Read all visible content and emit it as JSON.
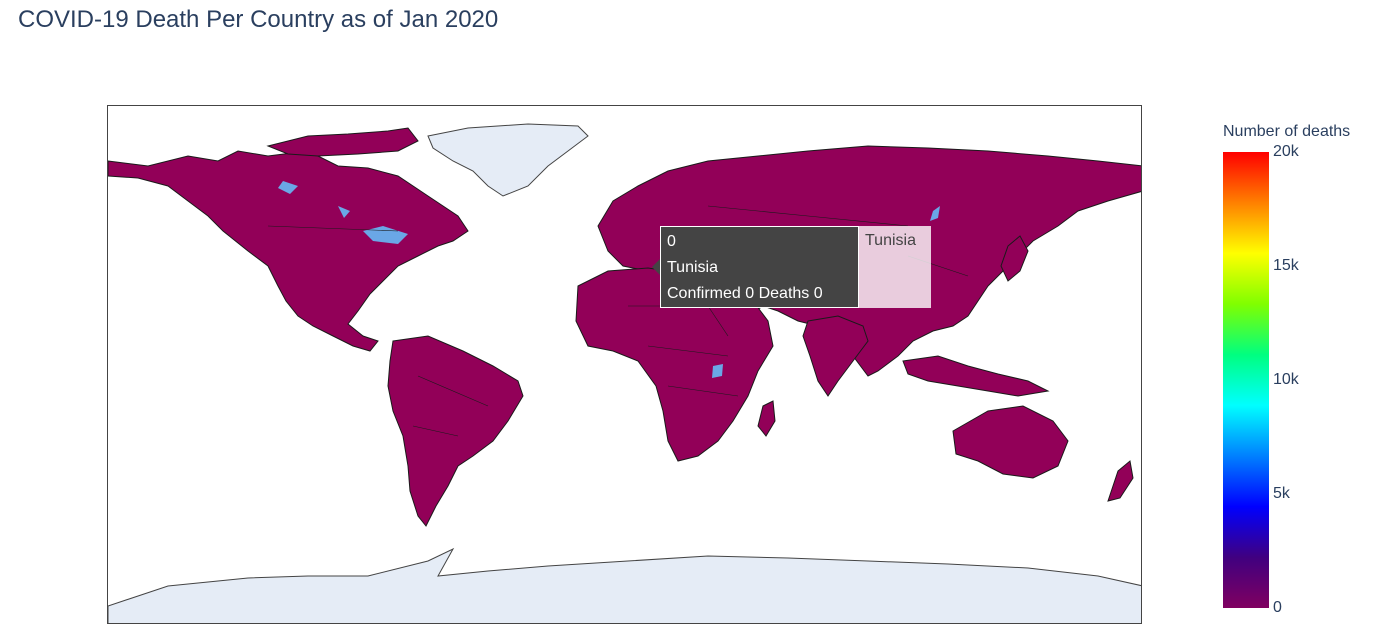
{
  "title": "COVID-19 Death Per Country as of Jan 2020",
  "colorbar": {
    "title": "Number of deaths",
    "ticks": [
      "20k",
      "15k",
      "10k",
      "5k",
      "0"
    ],
    "scale": [
      "#ff0000",
      "#ff8000",
      "#ffff00",
      "#80ff00",
      "#00ff80",
      "#00ffff",
      "#0080ff",
      "#0000ff",
      "#400080",
      "#800060"
    ]
  },
  "tooltip": {
    "value": "0",
    "country": "Tunisia",
    "detail": "Confirmed 0 Deaths 0",
    "trace_label": "Tunisia"
  },
  "chart_data": {
    "type": "choropleth",
    "title": "COVID-19 Death Per Country as of Jan 2020",
    "colorbar_title": "Number of deaths",
    "range": [
      0,
      20000
    ],
    "hovered": {
      "country": "Tunisia",
      "confirmed": 0,
      "deaths": 0
    }
  },
  "colors": {
    "land": "#920058",
    "no_data": "#e5ecf6",
    "lakes": "#6aa7e6",
    "border": "#1a1a1a"
  }
}
